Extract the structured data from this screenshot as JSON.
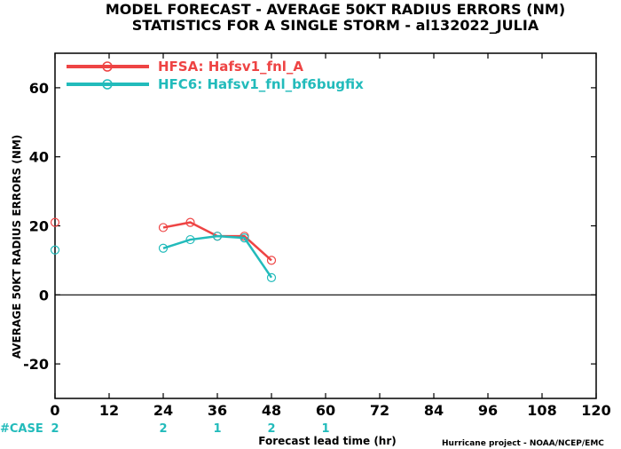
{
  "chart_data": {
    "type": "line",
    "title": "MODEL FORECAST - AVERAGE 50KT RADIUS ERRORS (NM)",
    "subtitle": "STATISTICS FOR A SINGLE STORM - al132022_JULIA",
    "xlabel": "Forecast lead time (hr)",
    "ylabel": "AVERAGE 50KT RADIUS ERRORS (NM)",
    "xlim": [
      0,
      120
    ],
    "ylim": [
      -30,
      70
    ],
    "x_ticks": [
      0,
      12,
      24,
      36,
      48,
      60,
      72,
      84,
      96,
      108,
      120
    ],
    "y_ticks": [
      -20,
      0,
      20,
      40,
      60
    ],
    "x_tick_labels": [
      "0",
      "12",
      "24",
      "36",
      "48",
      "60",
      "72",
      "84",
      "96",
      "108",
      "120"
    ],
    "y_tick_labels": [
      "-20",
      "0",
      "20",
      "40",
      "60"
    ],
    "grid": false,
    "legend_position": "top-left",
    "series": [
      {
        "name": "HFSA: Hafsv1_fnl_A",
        "color": "#ee4444",
        "isolated": [
          {
            "x": 0,
            "y": 21
          }
        ],
        "points": [
          {
            "x": 24,
            "y": 19.5
          },
          {
            "x": 30,
            "y": 21
          },
          {
            "x": 36,
            "y": 17
          },
          {
            "x": 42,
            "y": 17
          },
          {
            "x": 48,
            "y": 10
          }
        ]
      },
      {
        "name": "HFC6: Hafsv1_fnl_bf6bugfix",
        "color": "#22bbbb",
        "isolated": [
          {
            "x": 0,
            "y": 13
          }
        ],
        "points": [
          {
            "x": 24,
            "y": 13.5
          },
          {
            "x": 30,
            "y": 16
          },
          {
            "x": 36,
            "y": 17
          },
          {
            "x": 42,
            "y": 16.5
          },
          {
            "x": 48,
            "y": 5
          }
        ]
      }
    ],
    "case_label": "#CASE",
    "case_counts": [
      {
        "x": 0,
        "count": "2"
      },
      {
        "x": 24,
        "count": "2"
      },
      {
        "x": 36,
        "count": "1"
      },
      {
        "x": 48,
        "count": "2"
      },
      {
        "x": 60,
        "count": "1"
      }
    ],
    "credit": "Hurricane project - NOAA/NCEP/EMC"
  }
}
